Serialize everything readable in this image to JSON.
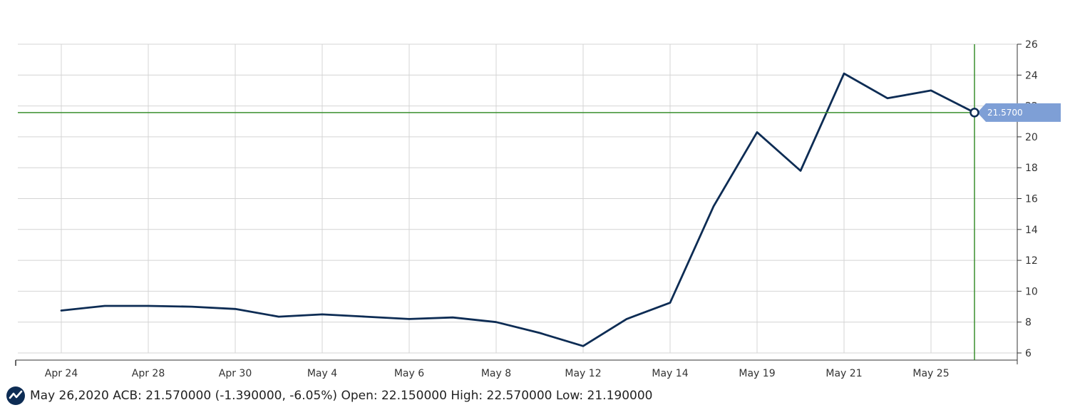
{
  "chart_data": {
    "type": "line",
    "title": "",
    "xlabel": "",
    "ylabel": "",
    "ylim": [
      6,
      26
    ],
    "yticks": [
      6,
      8,
      10,
      12,
      14,
      16,
      18,
      20,
      22,
      24,
      26
    ],
    "x_tick_labels": [
      "Apr 24",
      "Apr 28",
      "Apr 30",
      "May 4",
      "May 6",
      "May 8",
      "May 12",
      "May 14",
      "May 19",
      "May 21",
      "May 25"
    ],
    "grid": true,
    "series": [
      {
        "color": "#0d2c54",
        "values": [
          8.75,
          9.05,
          9.05,
          9.0,
          8.85,
          8.35,
          8.5,
          8.35,
          8.2,
          8.3,
          8.0,
          7.3,
          6.45,
          8.2,
          9.25,
          15.5,
          20.3,
          17.8,
          24.1,
          22.5,
          23.0,
          21.57
        ]
      }
    ],
    "crosshair": {
      "value": 21.57,
      "label": "21.5700",
      "line_color": "#3a8f2e",
      "flag_color": "#7e9fd6"
    }
  },
  "footer": {
    "logo_icon": "line-chart-logo-icon",
    "text": "May 26,2020 ACB: 21.570000 (-1.390000, -6.05%) Open: 22.150000 High: 22.570000 Low: 21.190000"
  }
}
